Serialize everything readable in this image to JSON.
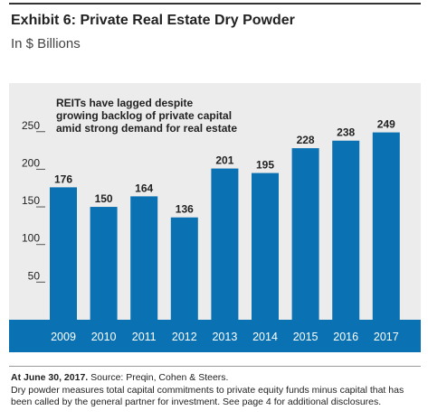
{
  "header": {
    "title": "Exhibit 6: Private Real Estate Dry Powder",
    "subtitle": "In $ Billions"
  },
  "footer": {
    "date_label": "At June 30, 2017.",
    "source": "Source: Preqin, Cohen & Steers.",
    "note": "Dry powder measures total capital commitments to private equity funds minus capital that has been called by the general partner for investment. See page 4 for additional disclosures."
  },
  "colors": {
    "panel": "#ececec",
    "bar": "#0a71b3",
    "axis_band": "#0a71b3",
    "tick_label": "#ffffff",
    "text": "#222222"
  },
  "chart_data": {
    "type": "bar",
    "categories": [
      "2009",
      "2010",
      "2011",
      "2012",
      "2013",
      "2014",
      "2015",
      "2016",
      "2017"
    ],
    "values": [
      176,
      150,
      164,
      136,
      201,
      195,
      228,
      238,
      249
    ],
    "data_labels": [
      "176",
      "150",
      "164",
      "136",
      "201",
      "195",
      "228",
      "238",
      "249"
    ],
    "annotation": [
      "REITs have lagged despite",
      "growing backlog of private capital",
      "amid strong demand for real estate"
    ],
    "yticks": [
      50,
      100,
      150,
      200,
      250
    ],
    "ylim": [
      0,
      270
    ],
    "grid": false
  }
}
